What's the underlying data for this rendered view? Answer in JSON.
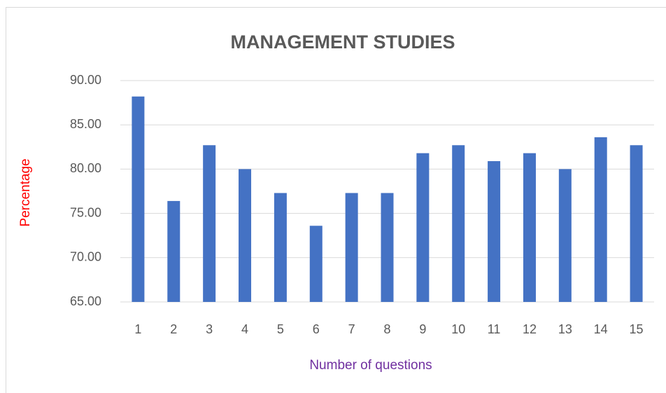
{
  "chart_data": {
    "type": "bar",
    "title": "MANAGEMENT STUDIES",
    "x_label": "Number of questions",
    "y_label": "Percentage",
    "categories": [
      "1",
      "2",
      "3",
      "4",
      "5",
      "6",
      "7",
      "8",
      "9",
      "10",
      "11",
      "12",
      "13",
      "14",
      "15"
    ],
    "values": [
      88.2,
      76.4,
      82.7,
      80.0,
      77.3,
      73.6,
      77.3,
      77.3,
      81.8,
      82.7,
      80.9,
      81.8,
      80.0,
      83.6,
      82.7
    ],
    "color": "#4472c4",
    "ylim": [
      65,
      90
    ],
    "yticks": [
      {
        "value": 65,
        "label": "65.00"
      },
      {
        "value": 70,
        "label": "70.00"
      },
      {
        "value": 75,
        "label": "75.00"
      },
      {
        "value": 80,
        "label": "80.00"
      },
      {
        "value": 85,
        "label": "85.00"
      },
      {
        "value": 90,
        "label": "90.00"
      }
    ],
    "grid": true
  }
}
